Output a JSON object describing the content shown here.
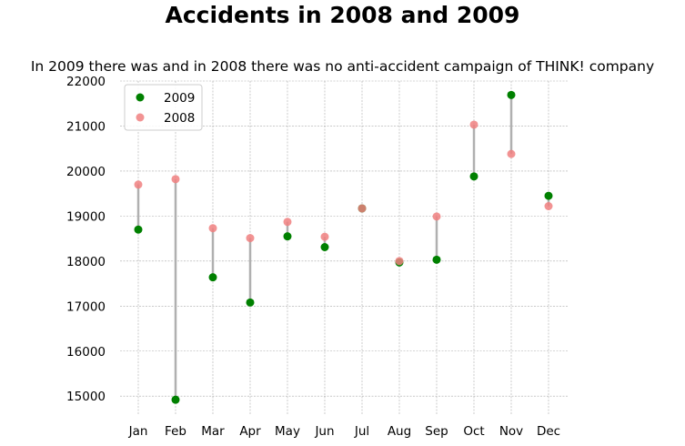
{
  "chart_data": {
    "type": "scatter",
    "title": "Accidents in 2008 and 2009",
    "subtitle": "In 2009 there was and in 2008 there was no anti-accident campaign of THINK! company",
    "xlabel": "",
    "ylabel": "",
    "categories": [
      "Jan",
      "Feb",
      "Mar",
      "Apr",
      "May",
      "Jun",
      "Jul",
      "Aug",
      "Sep",
      "Oct",
      "Nov",
      "Dec"
    ],
    "series": [
      {
        "name": "2009",
        "color": "#008000",
        "values": [
          18700,
          14920,
          17640,
          17080,
          18550,
          18310,
          19170,
          17970,
          18030,
          19880,
          21690,
          19450
        ]
      },
      {
        "name": "2008",
        "color": "#f08080",
        "values": [
          19700,
          19820,
          18730,
          18510,
          18870,
          18540,
          19170,
          18000,
          18990,
          21030,
          20380,
          19220
        ]
      }
    ],
    "yticks": [
      15000,
      16000,
      17000,
      18000,
      19000,
      20000,
      21000,
      22000
    ],
    "ylim": [
      14600,
      22000
    ],
    "grid": true,
    "legend_position": "top-left",
    "connector_color": "#b0b0b0"
  }
}
